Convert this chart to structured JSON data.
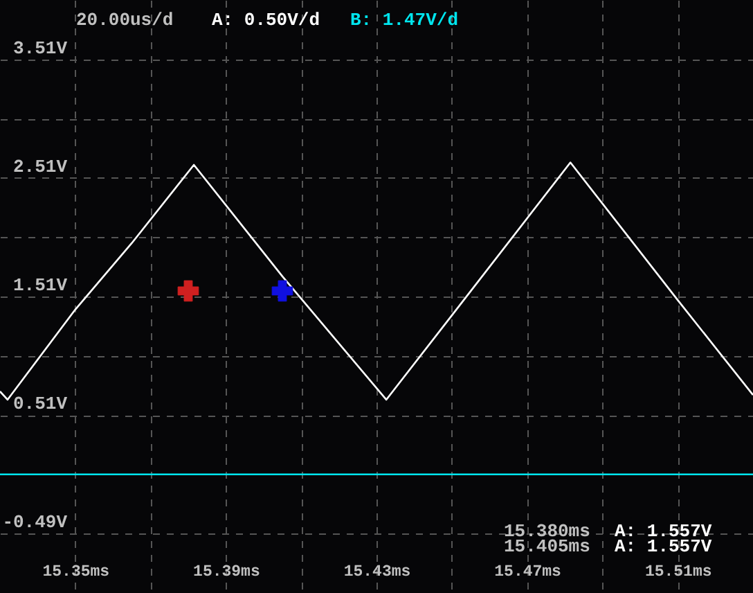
{
  "chart_data": {
    "type": "line",
    "x": [
      15.33,
      15.332,
      15.35,
      15.365,
      15.3815,
      15.405,
      15.4326,
      15.45,
      15.4815,
      15.51,
      15.53
    ],
    "series": [
      {
        "name": "A: 0.50V/d",
        "color": "#ffffff",
        "values": [
          0.71,
          0.64,
          1.4,
          1.96,
          2.62,
          1.68,
          0.64,
          1.35,
          2.64,
          1.48,
          0.68
        ]
      },
      {
        "name": "B: 1.47V/d",
        "color": "#00e5ee",
        "x": [
          15.33,
          15.53
        ],
        "values": [
          0.01,
          0.01
        ]
      },
      {
        "type": "scatter",
        "marker": "cross",
        "x": [
          15.38,
          15.405
        ],
        "values": [
          1.557,
          1.557
        ],
        "colors": [
          "#d02020",
          "#1010e0"
        ]
      }
    ],
    "xlim": [
      15.33,
      15.53
    ],
    "xticks": [
      {
        "value": 15.35,
        "label": "15.35ms"
      },
      {
        "value": 15.37,
        "label": null
      },
      {
        "value": 15.39,
        "label": "15.39ms"
      },
      {
        "value": 15.41,
        "label": null
      },
      {
        "value": 15.43,
        "label": "15.43ms"
      },
      {
        "value": 15.45,
        "label": null
      },
      {
        "value": 15.47,
        "label": "15.47ms"
      },
      {
        "value": 15.49,
        "label": null
      },
      {
        "value": 15.51,
        "label": "15.51ms"
      }
    ],
    "ylim": [
      -0.99,
      4.01
    ],
    "yticks": [
      {
        "value": 3.51,
        "label": "3.51V"
      },
      {
        "value": 3.01,
        "label": null
      },
      {
        "value": 2.51,
        "label": "2.51V"
      },
      {
        "value": 2.01,
        "label": null
      },
      {
        "value": 1.51,
        "label": "1.51V"
      },
      {
        "value": 1.01,
        "label": null
      },
      {
        "value": 0.51,
        "label": "0.51V"
      },
      {
        "value": 0.01,
        "label": null
      },
      {
        "value": -0.49,
        "label": "-0.49V"
      }
    ],
    "grid": true,
    "legend": "top",
    "annotations": [
      "20.00us/d",
      "15.380ms",
      "A: 1.557V",
      "15.405ms",
      "A: 1.557V"
    ]
  }
}
